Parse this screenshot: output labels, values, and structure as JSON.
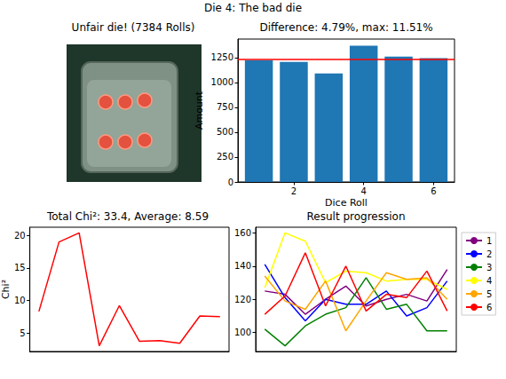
{
  "title": "Die 4: The bad die",
  "image": {
    "title": "Unfair die! (7384 Rolls)"
  },
  "chart_data": [
    {
      "type": "bar",
      "title": "Difference: 4.79%, max: 11.51%",
      "x": [
        1,
        2,
        3,
        4,
        5,
        6
      ],
      "values": [
        1220,
        1205,
        1089,
        1369,
        1258,
        1243
      ],
      "color": "#1f77b4",
      "expected": 1230.67,
      "xlabel": "Dice Roll",
      "ylabel": "Amount",
      "xlim": [
        0.4,
        6.6
      ],
      "xticks": [
        2,
        4,
        6
      ],
      "ylim": [
        0,
        1435
      ],
      "yticks": [
        0,
        250,
        500,
        750,
        1000,
        1250
      ],
      "grid": false
    },
    {
      "type": "line",
      "title": "Total Chi²: 33.4, Average: 8.59",
      "ylabel": "Chi²",
      "x": [
        0,
        1,
        2,
        3,
        4,
        5,
        6,
        7,
        8,
        9
      ],
      "values": [
        8.3,
        19.0,
        20.4,
        3.0,
        9.2,
        3.7,
        3.8,
        3.4,
        7.6,
        7.5
      ],
      "color": "#ff0000",
      "xlim": [
        -0.45,
        9.45
      ],
      "ylim": [
        2.13,
        21.27
      ],
      "yticks": [
        5,
        10,
        15,
        20
      ],
      "tick_labels": "y",
      "grid": false
    },
    {
      "type": "line",
      "title": "Result progression",
      "x": [
        0,
        1,
        2,
        3,
        4,
        5,
        6,
        7,
        8,
        9
      ],
      "series": [
        {
          "name": "1",
          "color": "#800080",
          "values": [
            125,
            123,
            111,
            120,
            128,
            116,
            120,
            123,
            119,
            138
          ]
        },
        {
          "name": "2",
          "color": "#0000ff",
          "values": [
            141,
            121,
            107,
            120,
            117,
            117,
            125,
            110,
            115,
            131
          ]
        },
        {
          "name": "3",
          "color": "#008000",
          "values": [
            102,
            92,
            104,
            111,
            115,
            133,
            114,
            117,
            101,
            101
          ]
        },
        {
          "name": "4",
          "color": "#ffff00",
          "values": [
            127,
            160,
            155,
            130,
            137,
            136,
            131,
            132,
            132,
            126
          ]
        },
        {
          "name": "5",
          "color": "#ffa500",
          "values": [
            134,
            119,
            114,
            131,
            101,
            119,
            136,
            132,
            133,
            120
          ]
        },
        {
          "name": "6",
          "color": "#ff0000",
          "values": [
            111,
            122,
            148,
            116,
            140,
            113,
            123,
            121,
            137,
            113
          ]
        }
      ],
      "xlim": [
        -0.45,
        9.45
      ],
      "ylim": [
        88.6,
        163.4
      ],
      "yticks": [
        100,
        120,
        140,
        160
      ],
      "tick_labels": "y",
      "legend": "right",
      "grid": false
    }
  ]
}
